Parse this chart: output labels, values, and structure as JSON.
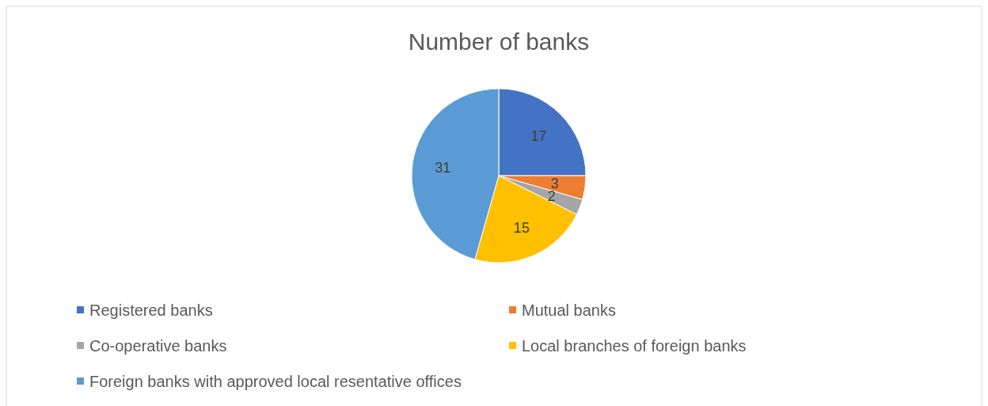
{
  "chart_data": {
    "type": "pie",
    "title": "Number of banks",
    "categories": [
      "Registered banks",
      "Mutual banks",
      "Co-operative banks",
      "Local branches of foreign banks",
      "Foreign banks with approved local resentative offices"
    ],
    "values": [
      17,
      3,
      2,
      15,
      31
    ],
    "colors": [
      "#4472c4",
      "#ed7d31",
      "#a5a5a5",
      "#ffc000",
      "#5b9bd5"
    ],
    "data_labels": true,
    "legend": "bottom"
  }
}
